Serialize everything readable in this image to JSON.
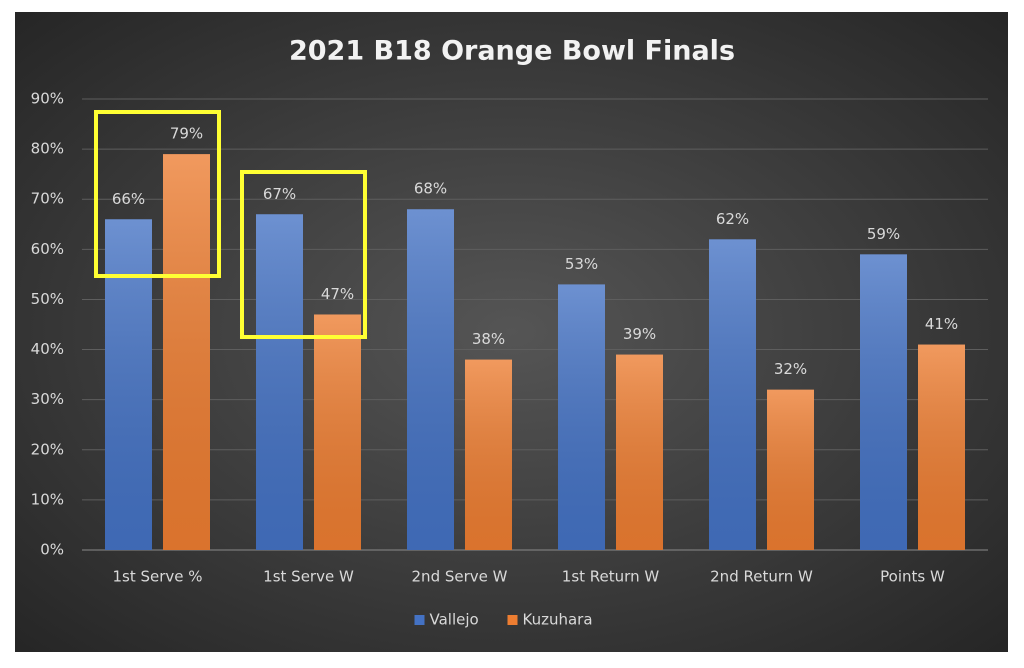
{
  "chart_data": {
    "type": "bar",
    "title": "2021 B18 Orange Bowl Finals",
    "categories": [
      "1st Serve %",
      "1st Serve W",
      "2nd Serve W",
      "1st Return W",
      "2nd Return W",
      "Points W"
    ],
    "series": [
      {
        "name": "Vallejo",
        "color": "#4472c4",
        "values": [
          66,
          67,
          68,
          53,
          62,
          59
        ],
        "value_labels": [
          "66%",
          "67%",
          "68%",
          "53%",
          "62%",
          "59%"
        ]
      },
      {
        "name": "Kuzuhara",
        "color": "#ed7d31",
        "values": [
          79,
          47,
          38,
          39,
          32,
          41
        ],
        "value_labels": [
          "79%",
          "47%",
          "38%",
          "39%",
          "32%",
          "41%"
        ]
      }
    ],
    "ylim": [
      0,
      90
    ],
    "yticks": [
      {
        "value": 0,
        "label": "0%"
      },
      {
        "value": 10,
        "label": "10%"
      },
      {
        "value": 20,
        "label": "20%"
      },
      {
        "value": 30,
        "label": "30%"
      },
      {
        "value": 40,
        "label": "40%"
      },
      {
        "value": 50,
        "label": "50%"
      },
      {
        "value": 60,
        "label": "60%"
      },
      {
        "value": 70,
        "label": "70%"
      },
      {
        "value": 80,
        "label": "80%"
      },
      {
        "value": 90,
        "label": "90%"
      }
    ],
    "grid": true,
    "legend": "bottom"
  }
}
